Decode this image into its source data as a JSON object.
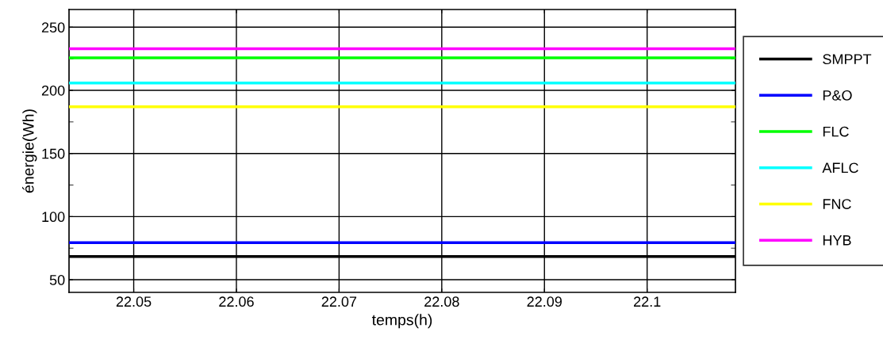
{
  "chart_data": {
    "type": "line",
    "xlabel": "temps(h)",
    "ylabel": "énergie(Wh)",
    "x": [
      22.0437,
      22.1086
    ],
    "series": [
      {
        "name": "SMPPT",
        "color": "#000000",
        "values": [
          68.4,
          68.4
        ]
      },
      {
        "name": "P&O",
        "color": "#0000ff",
        "values": [
          79.4,
          79.4
        ]
      },
      {
        "name": "FLC",
        "color": "#00ff00",
        "values": [
          225.7,
          225.7
        ]
      },
      {
        "name": "AFLC",
        "color": "#00ffff",
        "values": [
          205.8,
          205.8
        ]
      },
      {
        "name": "FNC",
        "color": "#ffff00",
        "values": [
          187,
          187
        ]
      },
      {
        "name": "HYB",
        "color": "#ff00ff",
        "values": [
          233,
          233
        ]
      }
    ],
    "xlim": [
      22.0437,
      22.1086
    ],
    "xticks": [
      22.05,
      22.06,
      22.07,
      22.08,
      22.09,
      22.1
    ],
    "ylim": [
      40,
      264
    ],
    "yticks": [
      50,
      {
        "value": 75,
        "label": null
      },
      100,
      {
        "value": 125,
        "label": null
      },
      150,
      {
        "value": 175,
        "label": null
      },
      200,
      {
        "value": 225,
        "label": null
      },
      250
    ],
    "grid": true,
    "legend": "right",
    "marker": "none",
    "line_style": "solid"
  }
}
